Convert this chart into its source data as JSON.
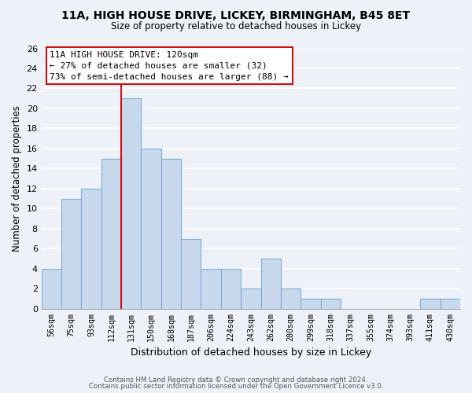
{
  "title": "11A, HIGH HOUSE DRIVE, LICKEY, BIRMINGHAM, B45 8ET",
  "subtitle": "Size of property relative to detached houses in Lickey",
  "xlabel": "Distribution of detached houses by size in Lickey",
  "ylabel": "Number of detached properties",
  "bar_color": "#c8d9ee",
  "bar_edge_color": "#7aadd4",
  "bin_labels": [
    "56sqm",
    "75sqm",
    "93sqm",
    "112sqm",
    "131sqm",
    "150sqm",
    "168sqm",
    "187sqm",
    "206sqm",
    "224sqm",
    "243sqm",
    "262sqm",
    "280sqm",
    "299sqm",
    "318sqm",
    "337sqm",
    "355sqm",
    "374sqm",
    "393sqm",
    "411sqm",
    "430sqm"
  ],
  "values": [
    4,
    11,
    12,
    15,
    21,
    16,
    15,
    7,
    4,
    4,
    2,
    5,
    2,
    1,
    1,
    0,
    0,
    0,
    0,
    1,
    1
  ],
  "ylim": [
    0,
    26
  ],
  "yticks": [
    0,
    2,
    4,
    6,
    8,
    10,
    12,
    14,
    16,
    18,
    20,
    22,
    24,
    26
  ],
  "property_line_index": 4,
  "annotation_title": "11A HIGH HOUSE DRIVE: 120sqm",
  "annotation_line1": "← 27% of detached houses are smaller (32)",
  "annotation_line2": "73% of semi-detached houses are larger (88) →",
  "footer1": "Contains HM Land Registry data © Crown copyright and database right 2024.",
  "footer2": "Contains public sector information licensed under the Open Government Licence v3.0.",
  "background_color": "#eef2f8",
  "grid_color": "white",
  "fig_bg": "#eef2f8",
  "annotation_box_color": "#cc1111"
}
